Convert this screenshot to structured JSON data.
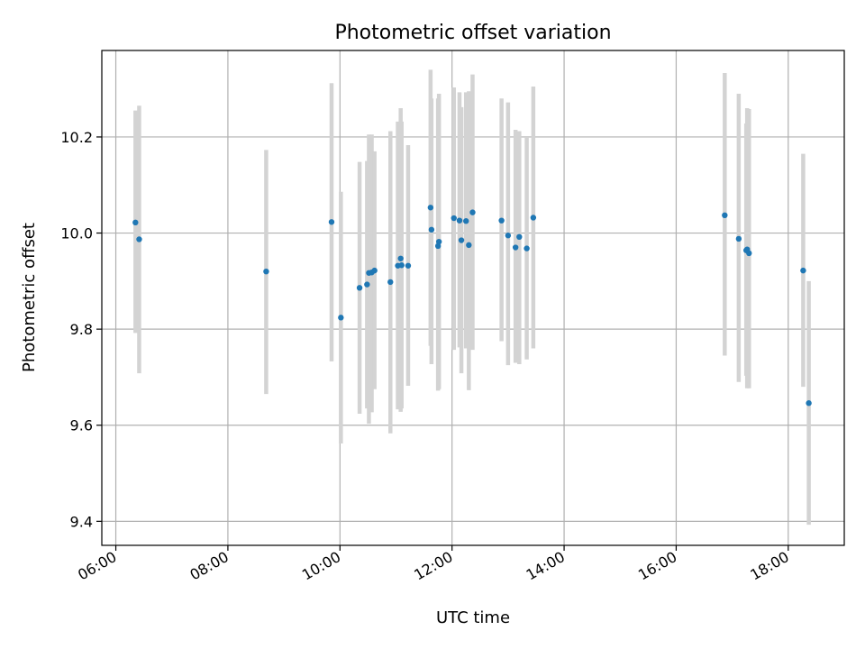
{
  "chart_data": {
    "type": "scatter",
    "title": "Photometric offset variation",
    "xlabel": "UTC time",
    "ylabel": "Photometric offset",
    "xlim": [
      "05:45",
      "19:00"
    ],
    "ylim": [
      9.35,
      10.38
    ],
    "x_ticks": [
      "06:00",
      "08:00",
      "10:00",
      "12:00",
      "14:00",
      "16:00",
      "18:00"
    ],
    "y_ticks": [
      9.4,
      9.6,
      9.8,
      10.0,
      10.2
    ],
    "grid": true,
    "marker_color": "#1f77b4",
    "errorbar_color": "#d3d3d3",
    "points": [
      {
        "t": "06:21",
        "y": 10.022,
        "lo": 9.792,
        "hi": 10.255
      },
      {
        "t": "06:25",
        "y": 9.987,
        "lo": 9.708,
        "hi": 10.265
      },
      {
        "t": "08:41",
        "y": 9.92,
        "lo": 9.665,
        "hi": 10.173
      },
      {
        "t": "09:51",
        "y": 10.023,
        "lo": 9.733,
        "hi": 10.312
      },
      {
        "t": "10:01",
        "y": 9.824,
        "lo": 9.562,
        "hi": 10.086
      },
      {
        "t": "10:21",
        "y": 9.886,
        "lo": 9.624,
        "hi": 10.148
      },
      {
        "t": "10:29",
        "y": 9.893,
        "lo": 9.635,
        "hi": 10.15
      },
      {
        "t": "10:31",
        "y": 9.917,
        "lo": 9.603,
        "hi": 10.205
      },
      {
        "t": "10:34",
        "y": 9.918,
        "lo": 9.627,
        "hi": 10.205
      },
      {
        "t": "10:37",
        "y": 9.922,
        "lo": 9.675,
        "hi": 10.17
      },
      {
        "t": "10:54",
        "y": 9.898,
        "lo": 9.583,
        "hi": 10.212
      },
      {
        "t": "11:02",
        "y": 9.932,
        "lo": 9.633,
        "hi": 10.232
      },
      {
        "t": "11:05",
        "y": 9.947,
        "lo": 9.628,
        "hi": 10.26
      },
      {
        "t": "11:06",
        "y": 9.933,
        "lo": 9.635,
        "hi": 10.232
      },
      {
        "t": "11:13",
        "y": 9.932,
        "lo": 9.682,
        "hi": 10.183
      },
      {
        "t": "11:37",
        "y": 10.053,
        "lo": 9.765,
        "hi": 10.34
      },
      {
        "t": "11:38",
        "y": 10.007,
        "lo": 9.727,
        "hi": 10.28
      },
      {
        "t": "11:45",
        "y": 9.973,
        "lo": 9.672,
        "hi": 10.28
      },
      {
        "t": "11:46",
        "y": 9.982,
        "lo": 9.675,
        "hi": 10.29
      },
      {
        "t": "12:02",
        "y": 10.031,
        "lo": 9.757,
        "hi": 10.303
      },
      {
        "t": "12:08",
        "y": 10.026,
        "lo": 9.762,
        "hi": 10.293
      },
      {
        "t": "12:10",
        "y": 9.985,
        "lo": 9.708,
        "hi": 10.262
      },
      {
        "t": "12:15",
        "y": 10.025,
        "lo": 9.76,
        "hi": 10.293
      },
      {
        "t": "12:18",
        "y": 9.975,
        "lo": 9.673,
        "hi": 10.295
      },
      {
        "t": "12:22",
        "y": 10.043,
        "lo": 9.757,
        "hi": 10.33
      },
      {
        "t": "12:53",
        "y": 10.026,
        "lo": 9.775,
        "hi": 10.28
      },
      {
        "t": "13:00",
        "y": 9.995,
        "lo": 9.725,
        "hi": 10.272
      },
      {
        "t": "13:08",
        "y": 9.97,
        "lo": 9.73,
        "hi": 10.215
      },
      {
        "t": "13:12",
        "y": 9.992,
        "lo": 9.727,
        "hi": 10.212
      },
      {
        "t": "13:20",
        "y": 9.968,
        "lo": 9.737,
        "hi": 10.2
      },
      {
        "t": "13:27",
        "y": 10.032,
        "lo": 9.76,
        "hi": 10.305
      },
      {
        "t": "16:52",
        "y": 10.037,
        "lo": 9.745,
        "hi": 10.333
      },
      {
        "t": "17:07",
        "y": 9.988,
        "lo": 9.69,
        "hi": 10.29
      },
      {
        "t": "17:15",
        "y": 9.964,
        "lo": 9.703,
        "hi": 10.228
      },
      {
        "t": "17:16",
        "y": 9.966,
        "lo": 9.677,
        "hi": 10.26
      },
      {
        "t": "17:18",
        "y": 9.958,
        "lo": 9.677,
        "hi": 10.258
      },
      {
        "t": "18:16",
        "y": 9.922,
        "lo": 9.68,
        "hi": 10.165
      },
      {
        "t": "18:22",
        "y": 9.646,
        "lo": 9.393,
        "hi": 9.9
      }
    ]
  }
}
